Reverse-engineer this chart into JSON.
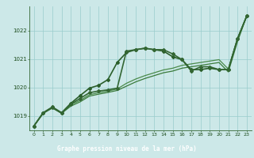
{
  "title": "Graphe pression niveau de la mer (hPa)",
  "background_color": "#cce8e8",
  "plot_bg_color": "#cce8e8",
  "footer_bg_color": "#2d6b2d",
  "footer_text_color": "#ffffff",
  "grid_color": "#99cccc",
  "xlim": [
    -0.5,
    23.5
  ],
  "ylim": [
    1018.5,
    1022.85
  ],
  "yticks": [
    1019,
    1020,
    1021,
    1022
  ],
  "xticks": [
    0,
    1,
    2,
    3,
    4,
    5,
    6,
    7,
    8,
    9,
    10,
    11,
    12,
    13,
    14,
    15,
    16,
    17,
    18,
    19,
    20,
    21,
    22,
    23
  ],
  "series": [
    {
      "x": [
        0,
        1,
        2,
        3,
        4,
        5,
        6,
        7,
        8,
        9,
        10,
        11,
        12,
        13,
        14,
        15,
        16,
        17,
        18,
        19,
        20,
        21,
        22,
        23
      ],
      "y": [
        1018.65,
        1019.1,
        1019.3,
        1019.1,
        1019.4,
        1019.55,
        1019.75,
        1019.82,
        1019.88,
        1019.95,
        1020.15,
        1020.3,
        1020.42,
        1020.52,
        1020.62,
        1020.68,
        1020.78,
        1020.83,
        1020.88,
        1020.93,
        1020.98,
        1020.65,
        1021.72,
        1022.52
      ],
      "color": "#4a8a4a",
      "lw": 0.9,
      "marker": null,
      "ms": 0,
      "zorder": 2
    },
    {
      "x": [
        0,
        1,
        2,
        3,
        4,
        5,
        6,
        7,
        8,
        9,
        10,
        11,
        12,
        13,
        14,
        15,
        16,
        17,
        18,
        19,
        20,
        21,
        22,
        23
      ],
      "y": [
        1018.65,
        1019.1,
        1019.28,
        1019.1,
        1019.35,
        1019.5,
        1019.7,
        1019.77,
        1019.83,
        1019.9,
        1020.05,
        1020.2,
        1020.32,
        1020.42,
        1020.52,
        1020.58,
        1020.68,
        1020.73,
        1020.78,
        1020.83,
        1020.88,
        1020.55,
        1021.62,
        1022.52
      ],
      "color": "#3a7a3a",
      "lw": 0.9,
      "marker": null,
      "ms": 0,
      "zorder": 2
    },
    {
      "x": [
        0,
        1,
        2,
        3,
        4,
        5,
        6,
        7,
        8,
        9,
        10,
        11,
        12,
        13,
        14,
        15,
        16,
        17,
        18,
        19,
        20,
        21,
        22,
        23
      ],
      "y": [
        1018.65,
        1019.12,
        1019.32,
        1019.12,
        1019.45,
        1019.72,
        1019.98,
        1020.08,
        1020.28,
        1020.88,
        1021.23,
        1021.33,
        1021.38,
        1021.33,
        1021.28,
        1021.08,
        1020.98,
        1020.63,
        1020.63,
        1020.68,
        1020.63,
        1020.63,
        1021.72,
        1022.52
      ],
      "color": "#2a5e2a",
      "lw": 1.2,
      "marker": "D",
      "ms": 2.0,
      "zorder": 4
    },
    {
      "x": [
        0,
        1,
        2,
        3,
        4,
        5,
        6,
        7,
        8,
        9,
        10,
        11,
        12,
        13,
        14,
        15,
        16,
        17,
        18,
        19,
        20,
        21,
        22,
        23
      ],
      "y": [
        1018.65,
        1019.1,
        1019.3,
        1019.1,
        1019.42,
        1019.62,
        1019.82,
        1019.88,
        1019.92,
        1019.98,
        1021.28,
        1021.33,
        1021.38,
        1021.33,
        1021.33,
        1021.18,
        1020.98,
        1020.58,
        1020.73,
        1020.73,
        1020.63,
        1020.63,
        1021.72,
        1022.52
      ],
      "color": "#336633",
      "lw": 1.2,
      "marker": "D",
      "ms": 2.0,
      "zorder": 4
    }
  ]
}
